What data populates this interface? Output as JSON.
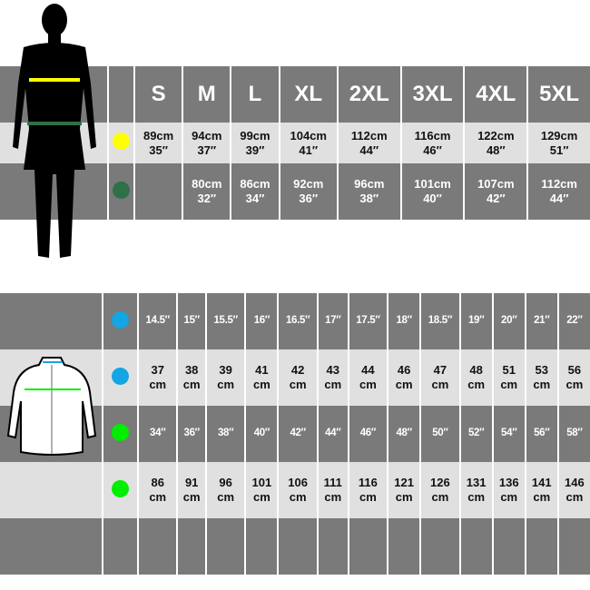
{
  "body_table": {
    "sizes": [
      "S",
      "M",
      "L",
      "XL",
      "2XL",
      "3XL",
      "4XL",
      "5XL"
    ],
    "chest": {
      "color": "#ffff00",
      "values": [
        [
          "89cm",
          "35″"
        ],
        [
          "94cm",
          "37″"
        ],
        [
          "99cm",
          "39″"
        ],
        [
          "104cm",
          "41″"
        ],
        [
          "112cm",
          "44″"
        ],
        [
          "116cm",
          "46″"
        ],
        [
          "122cm",
          "48″"
        ],
        [
          "129cm",
          "51″"
        ]
      ]
    },
    "waist": {
      "color": "#2e7048",
      "values": [
        [
          "",
          ""
        ],
        [
          "80cm",
          "32″"
        ],
        [
          "86cm",
          "34″"
        ],
        [
          "92cm",
          "36″"
        ],
        [
          "96cm",
          "38″"
        ],
        [
          "101cm",
          "40″"
        ],
        [
          "107cm",
          "42″"
        ],
        [
          "112cm",
          "44″"
        ]
      ]
    }
  },
  "shirt_table": {
    "collar_in": {
      "color": "#14a5e3",
      "values": [
        "14.5″",
        "15″",
        "15.5″",
        "16″",
        "16.5″",
        "17″",
        "17.5″",
        "18″",
        "18.5″",
        "19″",
        "20″",
        "21″",
        "22″"
      ]
    },
    "collar_cm": {
      "color": "#14a5e3",
      "values": [
        "37",
        "38",
        "39",
        "41",
        "42",
        "43",
        "44",
        "46",
        "47",
        "48",
        "51",
        "53",
        "56"
      ]
    },
    "chest_in": {
      "color": "#00ee00",
      "values": [
        "34″",
        "36″",
        "38″",
        "40″",
        "42″",
        "44″",
        "46″",
        "48″",
        "50″",
        "52″",
        "54″",
        "56″",
        "58″"
      ]
    },
    "chest_cm": {
      "color": "#00ee00",
      "values": [
        "86",
        "91",
        "96",
        "101",
        "106",
        "111",
        "116",
        "121",
        "126",
        "131",
        "136",
        "141",
        "146"
      ]
    },
    "unit": "cm"
  }
}
